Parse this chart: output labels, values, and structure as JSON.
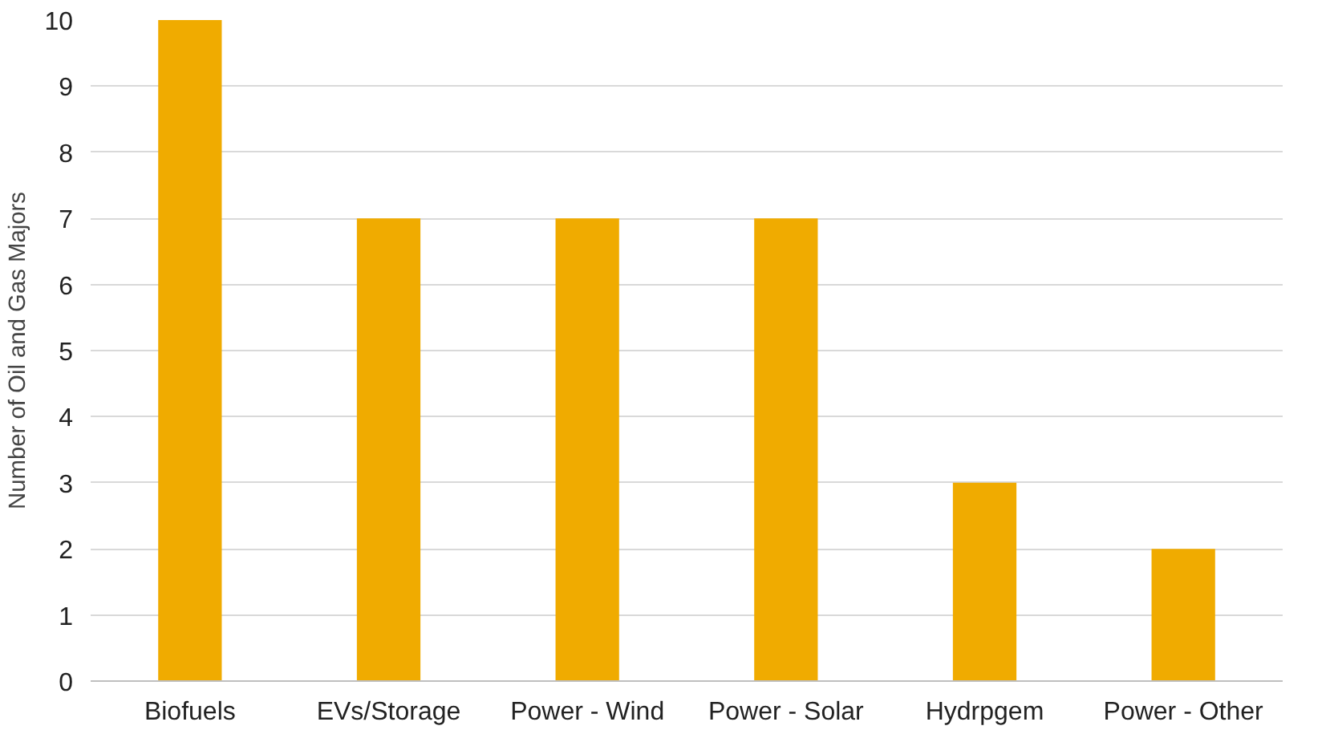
{
  "chart_data": {
    "type": "bar",
    "ylabel": "Number of Oil and Gas Majors",
    "categories": [
      "Biofuels",
      "EVs/Storage",
      "Power - Wind",
      "Power - Solar",
      "Hydrpgem",
      "Power - Other"
    ],
    "values": [
      10,
      7,
      7,
      7,
      3,
      2
    ],
    "color": "#f0ab00",
    "ylim": [
      0,
      10
    ],
    "yticks": [
      0,
      1,
      2,
      3,
      4,
      5,
      6,
      7,
      8,
      9,
      10
    ],
    "grid": "y"
  }
}
